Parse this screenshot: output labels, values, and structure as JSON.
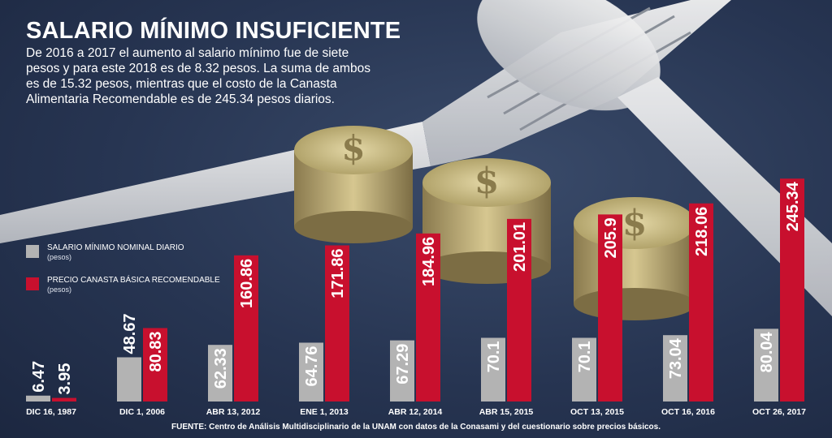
{
  "header": {
    "title": "SALARIO MÍNIMO INSUFICIENTE",
    "intro": "De 2016 a 2017 el aumento al salario mínimo fue de siete pesos y para este 2018 es de 8.32 pesos. La suma de ambos es de 15.32 pesos, mientras que el costo de la Canasta Alimentaria Recomendable es de 245.34 pesos diarios."
  },
  "legend": {
    "items": [
      {
        "label": "SALARIO MÍNIMO NOMINAL DIARIO",
        "unit": "(pesos)",
        "color": "#b3b3b3"
      },
      {
        "label": "PRECIO CANASTA BÁSICA RECOMENDABLE",
        "unit": "(pesos)",
        "color": "#c8102e"
      }
    ]
  },
  "chart_data": {
    "type": "bar",
    "categories": [
      "DIC 16, 1987",
      "DIC 1, 2006",
      "ABR 13, 2012",
      "ENE 1, 2013",
      "ABR 12, 2014",
      "ABR 15, 2015",
      "OCT 13, 2015",
      "OCT 16, 2016",
      "OCT 26, 2017"
    ],
    "series": [
      {
        "name": "SALARIO MÍNIMO NOMINAL DIARIO",
        "labels": [
          "6.47",
          "48.67",
          "62.33",
          "64.76",
          "67.29",
          "70.1",
          "70.1",
          "73.04",
          "80.04"
        ],
        "values": [
          6.47,
          48.67,
          62.33,
          64.76,
          67.29,
          70.1,
          70.1,
          73.04,
          80.04
        ],
        "color": "#b3b3b3"
      },
      {
        "name": "PRECIO CANASTA BÁSICA RECOMENDABLE",
        "labels": [
          "3.95",
          "80.83",
          "160.86",
          "171.86",
          "184.96",
          "201.01",
          "205.9",
          "218.06",
          "245.34"
        ],
        "values": [
          3.95,
          80.83,
          160.86,
          171.86,
          184.96,
          201.01,
          205.9,
          218.06,
          245.34
        ],
        "color": "#c8102e"
      }
    ],
    "ylim": [
      0,
      250
    ],
    "grid": false,
    "legend_position": "left"
  },
  "footer": {
    "source": "FUENTE: Centro de Análisis Multidisciplinario de la UNAM con datos de la Conasami y del cuestionario sobre precios básicos."
  }
}
